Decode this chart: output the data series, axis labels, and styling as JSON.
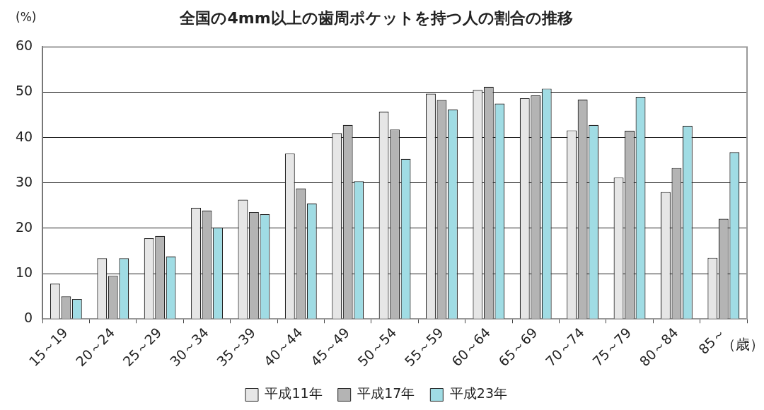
{
  "chart_data": {
    "type": "bar",
    "title": "全国の4mm以上の歯周ポケットを持つ人の割合の推移",
    "ylabel": "(%)",
    "xlabel": "（歳）",
    "categories": [
      "15～19",
      "20～24",
      "25～29",
      "30～34",
      "35～39",
      "40～44",
      "45～49",
      "50～54",
      "55～59",
      "60～64",
      "65～69",
      "70～74",
      "75～79",
      "80～84",
      "85～"
    ],
    "series": [
      {
        "name": "平成11年",
        "color": "#e6e6e6",
        "values": [
          7.8,
          13.4,
          17.8,
          24.5,
          26.3,
          36.5,
          41.0,
          45.7,
          49.7,
          50.5,
          48.7,
          41.6,
          31.2,
          28.0,
          13.5
        ]
      },
      {
        "name": "平成17年",
        "color": "#b4b4b4",
        "values": [
          5.0,
          9.5,
          18.3,
          23.9,
          23.6,
          28.8,
          42.8,
          41.8,
          48.3,
          51.2,
          49.3,
          48.4,
          41.5,
          33.3,
          22.1
        ]
      },
      {
        "name": "平成23年",
        "color": "#a0dce4",
        "values": [
          4.4,
          13.4,
          13.8,
          20.2,
          23.1,
          25.5,
          30.4,
          35.3,
          46.2,
          47.5,
          50.8,
          42.8,
          49.0,
          42.6,
          36.8
        ]
      }
    ],
    "ylim": [
      0,
      60
    ],
    "yticks": [
      0,
      10,
      20,
      30,
      40,
      50,
      60
    ],
    "grid": "y",
    "legend": "bottom"
  }
}
